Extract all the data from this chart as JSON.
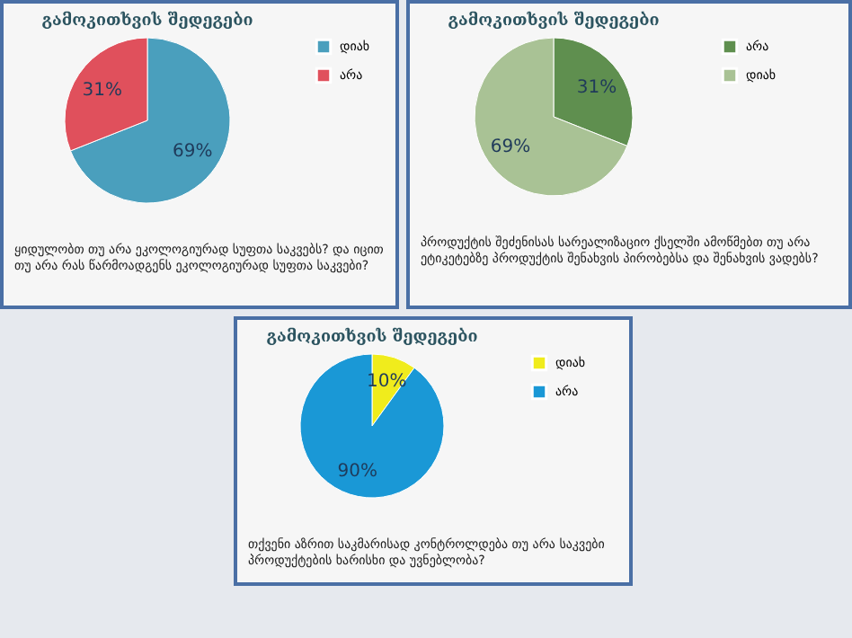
{
  "chart_data": [
    {
      "type": "pie",
      "title": "გამოკითხვის შედეგები",
      "categories": [
        "დიახ",
        "არა"
      ],
      "values": [
        69,
        31
      ],
      "colors": [
        "#4a9fbd",
        "#e0505c"
      ],
      "value_labels": [
        "69%",
        "31%"
      ],
      "legend": "right",
      "annotations": [
        "ყიდულობთ თუ არა ეკოლოგიურად სუფთა საკვებს? და იცით თუ არა რას წარმოადგენს ეკოლოგიურად სუფთა საკვები?"
      ]
    },
    {
      "type": "pie",
      "title": "გამოკითხვის შედეგები",
      "categories": [
        "არა",
        "დიახ"
      ],
      "values": [
        31,
        69
      ],
      "colors": [
        "#5f8f4f",
        "#a9c295"
      ],
      "value_labels": [
        "31%",
        "69%"
      ],
      "legend": "right",
      "annotations": [
        "პროდუქტის შეძენისას სარეალიზაციო ქსელში ამოწმებთ თუ არა ეტიკეტებზე პროდუქტის შენახვის პირობებსა და შენახვის ვადებს?"
      ]
    },
    {
      "type": "pie",
      "title": "გამოკითხვის შედეგები",
      "categories": [
        "დიახ",
        "არა"
      ],
      "values": [
        10,
        90
      ],
      "colors": [
        "#f0ec1c",
        "#1a98d6"
      ],
      "value_labels": [
        "10%",
        "90%"
      ],
      "legend": "right",
      "annotations": [
        "თქვენი აზრით საკმარისად კონტროლდება თუ არა საკვები პროდუქტების ხარისხი და უვნებლობა?"
      ]
    }
  ]
}
